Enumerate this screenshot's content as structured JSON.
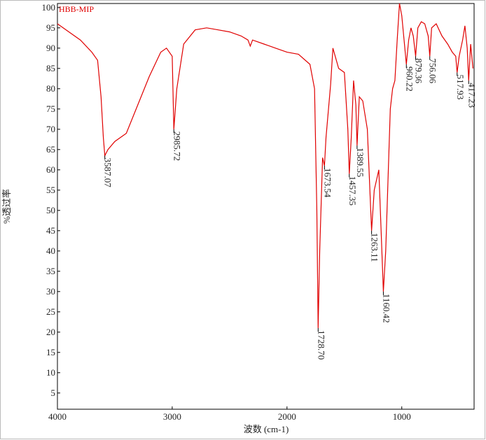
{
  "chart_data": {
    "type": "line",
    "xlabel": "波数 (cm-1)",
    "ylabel": "%透过率",
    "xlim": [
      4000,
      370
    ],
    "ylim": [
      1,
      101
    ],
    "xticks": [
      4000,
      3000,
      2000,
      1000
    ],
    "yticks": [
      5,
      10,
      15,
      20,
      25,
      30,
      35,
      40,
      45,
      50,
      55,
      60,
      65,
      70,
      75,
      80,
      85,
      90,
      95,
      100
    ],
    "grid": false,
    "series": [
      {
        "name": "HBB-MIP",
        "color": "#e00000",
        "x": [
          4000,
          3900,
          3800,
          3700,
          3650,
          3620,
          3600,
          3587.07,
          3560,
          3500,
          3400,
          3300,
          3200,
          3100,
          3050,
          3000,
          2985.72,
          2960,
          2900,
          2800,
          2700,
          2600,
          2500,
          2400,
          2340,
          2320,
          2300,
          2200,
          2100,
          2000,
          1900,
          1800,
          1760,
          1740,
          1728.7,
          1715,
          1690,
          1673.54,
          1660,
          1620,
          1600,
          1580,
          1550,
          1500,
          1470,
          1457.35,
          1440,
          1420,
          1400,
          1389.55,
          1370,
          1340,
          1300,
          1263.11,
          1240,
          1200,
          1180,
          1160.42,
          1140,
          1100,
          1080,
          1060,
          1040,
          1020,
          1000,
          980,
          960.22,
          940,
          920,
          900,
          879.36,
          860,
          830,
          800,
          770,
          756.06,
          740,
          700,
          650,
          600,
          560,
          530,
          517.93,
          500,
          470,
          450,
          430,
          417.23,
          400,
          380
        ],
        "values": [
          96,
          94,
          92,
          89,
          87,
          78,
          68,
          63.5,
          65,
          67,
          69,
          76,
          83,
          89,
          90,
          88,
          70,
          80,
          91,
          94.5,
          95,
          94.5,
          94,
          93,
          92,
          90.5,
          92,
          91,
          90,
          89,
          88.5,
          86,
          80,
          50,
          21,
          40,
          63,
          61,
          68,
          81,
          90,
          88,
          85,
          84,
          70,
          59,
          68,
          82,
          76,
          66,
          78,
          77,
          70,
          45,
          55,
          60,
          45,
          30,
          40,
          75,
          80,
          82,
          92,
          101,
          98,
          92,
          86,
          92,
          95,
          93,
          88,
          95,
          96.5,
          96,
          93,
          88,
          95,
          96,
          93,
          91,
          89,
          88,
          84,
          88,
          92,
          95.5,
          90,
          82,
          91,
          85
        ]
      }
    ],
    "annotations": [
      {
        "label": "3587.07",
        "x": 3587.07,
        "y": 63.5
      },
      {
        "label": "2985.72",
        "x": 2985.72,
        "y": 70
      },
      {
        "label": "1728.70",
        "x": 1728.7,
        "y": 21
      },
      {
        "label": "1673.54",
        "x": 1673.54,
        "y": 61
      },
      {
        "label": "1457.35",
        "x": 1457.35,
        "y": 59
      },
      {
        "label": "1389.55",
        "x": 1389.55,
        "y": 66
      },
      {
        "label": "1263.11",
        "x": 1263.11,
        "y": 45
      },
      {
        "label": "1160.42",
        "x": 1160.42,
        "y": 30
      },
      {
        "label": "960.22",
        "x": 960.22,
        "y": 86
      },
      {
        "label": "879.36",
        "x": 879.36,
        "y": 88
      },
      {
        "label": "756.06",
        "x": 756.06,
        "y": 88
      },
      {
        "label": "517.93",
        "x": 517.93,
        "y": 84
      },
      {
        "label": "417.23",
        "x": 417.23,
        "y": 82
      }
    ]
  }
}
